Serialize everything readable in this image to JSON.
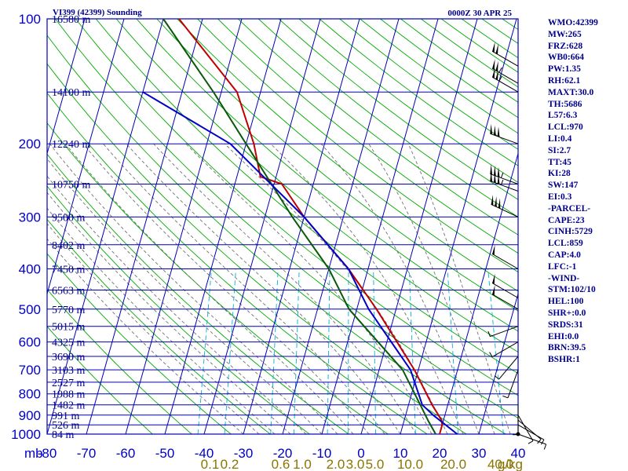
{
  "header": {
    "station_title": "VI399 (42399) Sounding",
    "valid_time": "0000Z 30 APR 25"
  },
  "chart_data": {
    "type": "line",
    "title": "VI399 (42399) Sounding",
    "xunit": "mb",
    "pressure_ticks": [
      100,
      200,
      300,
      400,
      500,
      600,
      700,
      800,
      900,
      1000
    ],
    "x_ticks": [
      -80,
      -70,
      -60,
      -50,
      -40,
      -30,
      -20,
      -10,
      0,
      10,
      20,
      30,
      40
    ],
    "xlim": [
      -80,
      40
    ],
    "mixing_ratio_labels": [
      "0.1",
      "0.2",
      "0.6",
      "1.0",
      "2.0",
      "3.0",
      "5.0",
      "10.0",
      "20.0",
      "40.0"
    ],
    "mixing_ratio_unit": "g/kg",
    "mixing_ratio_label_t": [
      -38.5,
      -33.5,
      -20.5,
      -15,
      -6.5,
      -1.5,
      3.5,
      12.5,
      23.5,
      35.5
    ],
    "height_labels": [
      {
        "p": 100,
        "label": "16580 m"
      },
      {
        "p": 150,
        "label": "14100 m"
      },
      {
        "p": 200,
        "label": "12240 m"
      },
      {
        "p": 250,
        "label": "10750 m"
      },
      {
        "p": 300,
        "label": "9500 m"
      },
      {
        "p": 350,
        "label": "8402 m"
      },
      {
        "p": 400,
        "label": "7450 m"
      },
      {
        "p": 450,
        "label": "6563 m"
      },
      {
        "p": 500,
        "label": "5770 m"
      },
      {
        "p": 550,
        "label": "5015 m"
      },
      {
        "p": 600,
        "label": "4325 m"
      },
      {
        "p": 650,
        "label": "3690 m"
      },
      {
        "p": 700,
        "label": "3103 m"
      },
      {
        "p": 750,
        "label": "2527 m"
      },
      {
        "p": 800,
        "label": "1988 m"
      },
      {
        "p": 850,
        "label": "1482 m"
      },
      {
        "p": 900,
        "label": "991 m"
      },
      {
        "p": 950,
        "label": "526 m"
      },
      {
        "p": 1000,
        "label": "84 m"
      }
    ],
    "series": [
      {
        "key": "temperature",
        "color": "#c00000",
        "points": [
          [
            1000,
            20
          ],
          [
            950,
            20
          ],
          [
            925,
            19.5
          ],
          [
            850,
            16
          ],
          [
            700,
            9
          ],
          [
            500,
            -5
          ],
          [
            400,
            -15
          ],
          [
            350,
            -22
          ],
          [
            300,
            -30
          ],
          [
            250,
            -38
          ],
          [
            240,
            -44
          ],
          [
            200,
            -48
          ],
          [
            150,
            -56
          ],
          [
            100,
            -76
          ]
        ]
      },
      {
        "key": "dewpoint",
        "color": "#0a5a0a",
        "points": [
          [
            1000,
            19
          ],
          [
            925,
            16
          ],
          [
            850,
            13
          ],
          [
            700,
            6
          ],
          [
            500,
            -12
          ],
          [
            400,
            -20
          ],
          [
            300,
            -33
          ],
          [
            200,
            -50
          ],
          [
            150,
            -62
          ],
          [
            100,
            -80
          ]
        ]
      },
      {
        "key": "parcel",
        "color": "#0000c8",
        "points": [
          [
            1000,
            24.5
          ],
          [
            900,
            17
          ],
          [
            850,
            13.5
          ],
          [
            700,
            8
          ],
          [
            500,
            -7
          ],
          [
            400,
            -15
          ],
          [
            300,
            -30
          ],
          [
            200,
            -54
          ],
          [
            150,
            -80
          ]
        ]
      }
    ],
    "barbs": [
      {
        "p": 130,
        "dir": 300,
        "spd": 20
      },
      {
        "p": 143,
        "dir": 300,
        "spd": 25
      },
      {
        "p": 150,
        "dir": 300,
        "spd": 25
      },
      {
        "p": 200,
        "dir": 290,
        "spd": 30
      },
      {
        "p": 250,
        "dir": 290,
        "spd": 35
      },
      {
        "p": 260,
        "dir": 290,
        "spd": 35
      },
      {
        "p": 300,
        "dir": 295,
        "spd": 30
      },
      {
        "p": 400,
        "dir": 300,
        "spd": 10
      },
      {
        "p": 470,
        "dir": 300,
        "spd": 10
      },
      {
        "p": 500,
        "dir": 300,
        "spd": 10
      },
      {
        "p": 550,
        "dir": 250,
        "spd": 5
      },
      {
        "p": 600,
        "dir": 240,
        "spd": 5
      },
      {
        "p": 650,
        "dir": 220,
        "spd": 5
      },
      {
        "p": 700,
        "dir": 200,
        "spd": 5
      },
      {
        "p": 850,
        "dir": 180,
        "spd": 5
      },
      {
        "p": 900,
        "dir": 150,
        "spd": 5
      },
      {
        "p": 925,
        "dir": 130,
        "spd": 5
      },
      {
        "p": 950,
        "dir": 120,
        "spd": 5
      },
      {
        "p": 1000,
        "dir": 110,
        "spd": 5
      }
    ]
  },
  "indices": [
    "WMO:42399",
    "MW:265",
    "FRZ:628",
    "WB0:664",
    "PW:1.35",
    "RH:62.1",
    "MAXT:30.0",
    "TH:5686",
    "L57:6.3",
    "LCL:970",
    "LI:0.4",
    "SI:2.7",
    "TT:45",
    "KI:28",
    "SW:147",
    "EI:0.3",
    "-PARCEL-",
    "CAPE:23",
    "CINH:5729",
    "LCL:859",
    "CAP:4.0",
    "LFC:-1",
    "-WIND-",
    "STM:102/10",
    "HEL:100",
    "SHR+:0.0",
    "SRDS:31",
    "EHI:0.0",
    "BRN:39.5",
    "BSHR:1"
  ],
  "colors": {
    "grid": "#0000b4",
    "dry_adiabat": "#00aa00",
    "moist_adiabat": "#707070",
    "mixing_ratio": "#00b0d8",
    "axis_label": "#0000c8",
    "mixing_label": "#8b7500",
    "text": "#00008b"
  }
}
